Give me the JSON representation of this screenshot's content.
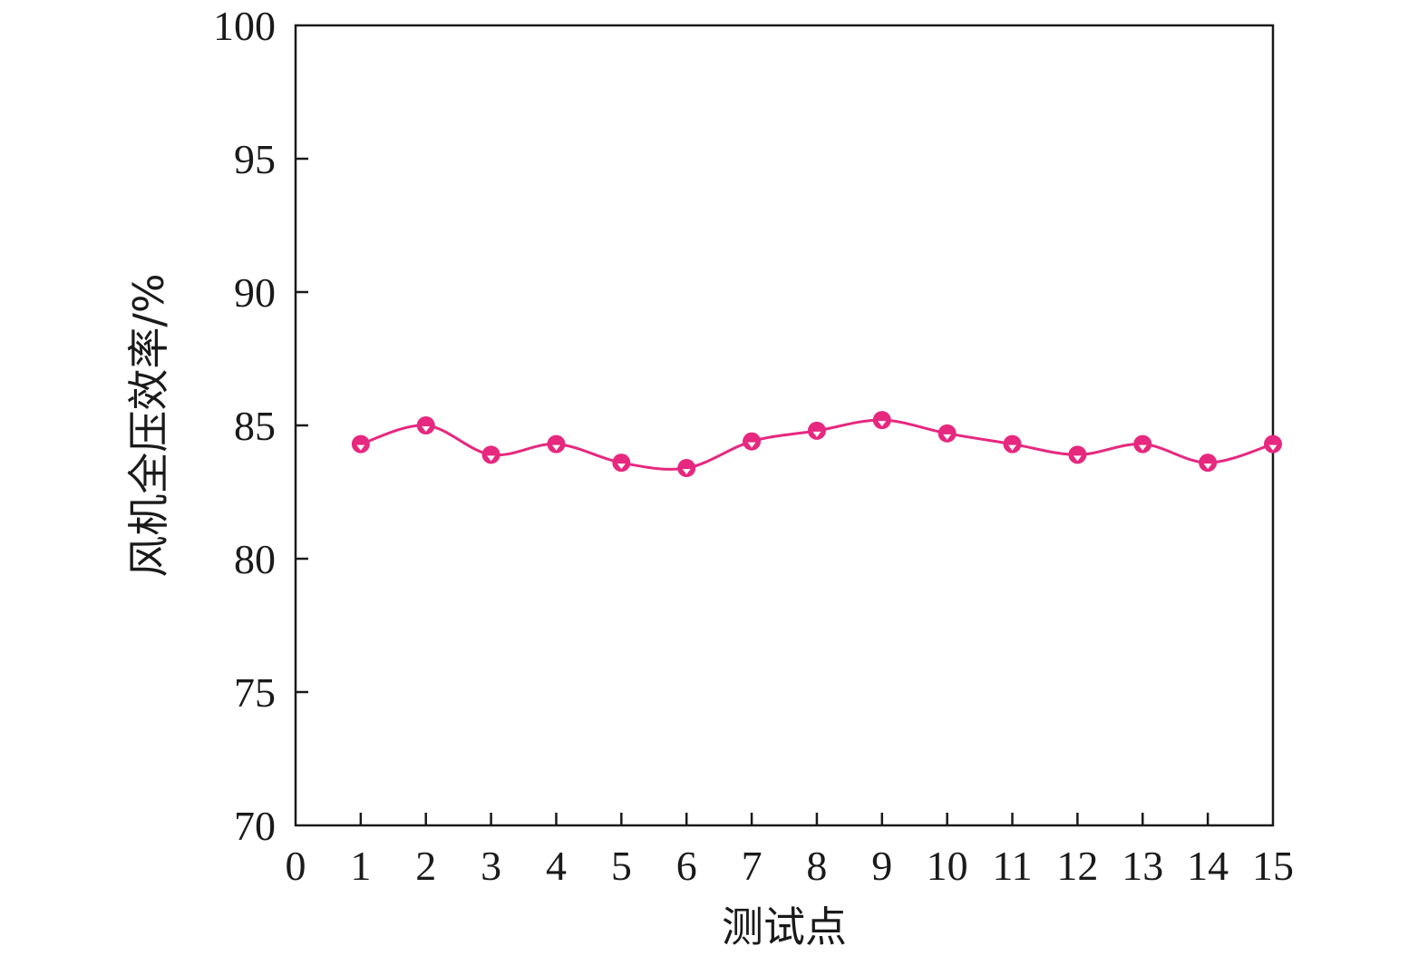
{
  "chart_data": {
    "type": "line",
    "title": "",
    "xlabel": "测试点",
    "ylabel": "风机全压效率/%",
    "xlim": [
      0,
      15
    ],
    "ylim": [
      70,
      100
    ],
    "xticks": [
      0,
      1,
      2,
      3,
      4,
      5,
      6,
      7,
      8,
      9,
      10,
      11,
      12,
      13,
      14,
      15
    ],
    "yticks": [
      70,
      75,
      80,
      85,
      90,
      95,
      100
    ],
    "grid": false,
    "legend": "none",
    "smooth": true,
    "series": [
      {
        "color": "#e6287f",
        "marker": "circle",
        "x": [
          1,
          2,
          3,
          4,
          5,
          6,
          7,
          8,
          9,
          10,
          11,
          12,
          13,
          14,
          15
        ],
        "y": [
          84.3,
          85.0,
          83.9,
          84.3,
          83.6,
          83.4,
          84.4,
          84.8,
          85.2,
          84.7,
          84.3,
          83.9,
          84.3,
          83.6,
          84.3
        ]
      }
    ]
  }
}
